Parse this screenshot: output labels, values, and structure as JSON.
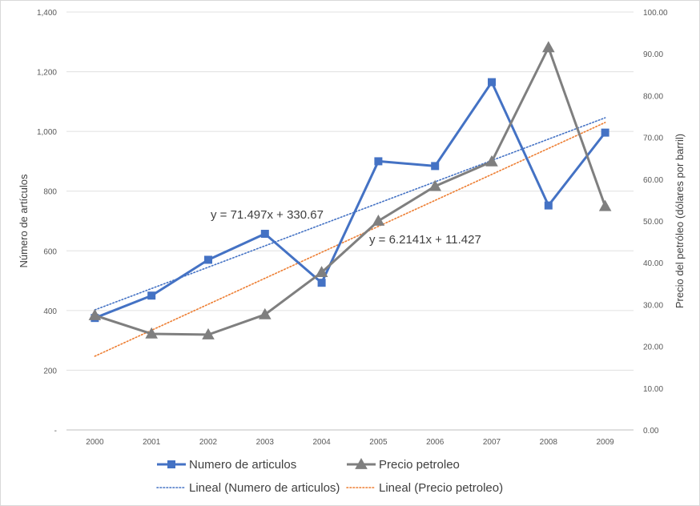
{
  "chart_data": {
    "type": "line",
    "x": [
      "2000",
      "2001",
      "2002",
      "2003",
      "2004",
      "2005",
      "2006",
      "2007",
      "2008",
      "2009"
    ],
    "series": [
      {
        "name": "Numero de articulos",
        "axis": "left",
        "marker": "square",
        "color": "#4472c4",
        "values": [
          375,
          450,
          570,
          657,
          493,
          900,
          884,
          1165,
          752,
          996
        ]
      },
      {
        "name": "Precio petroleo",
        "axis": "right",
        "marker": "triangle",
        "color": "#7f7f7f",
        "values": [
          27.4,
          23.0,
          22.8,
          27.6,
          37.7,
          50.0,
          58.3,
          64.2,
          91.5,
          53.5
        ]
      }
    ],
    "trendlines": [
      {
        "name": "Lineal (Numero de articulos)",
        "series": "Numero de articulos",
        "axis": "left",
        "color": "#4472c4",
        "slope": 71.497,
        "intercept": 330.67,
        "equation": "y = 71.497x + 330.67"
      },
      {
        "name": "Lineal (Precio petroleo)",
        "series": "Precio petroleo",
        "axis": "right",
        "color": "#ed7d31",
        "slope": 6.2141,
        "intercept": 11.427,
        "equation": "y = 6.2141x + 11.427"
      }
    ],
    "ylabel": "Número de artículos",
    "y2label": "Precio del petróleo (dólares por barril)",
    "ylim": [
      0,
      1400
    ],
    "y2lim": [
      0,
      100
    ],
    "yticks": [
      "-",
      "200",
      "400",
      "600",
      "800",
      "1,000",
      "1,200",
      "1,400"
    ],
    "y2ticks": [
      "0.00",
      "10.00",
      "20.00",
      "30.00",
      "40.00",
      "50.00",
      "60.00",
      "70.00",
      "80.00",
      "90.00",
      "100.00"
    ],
    "grid": true,
    "legend_position": "bottom"
  }
}
